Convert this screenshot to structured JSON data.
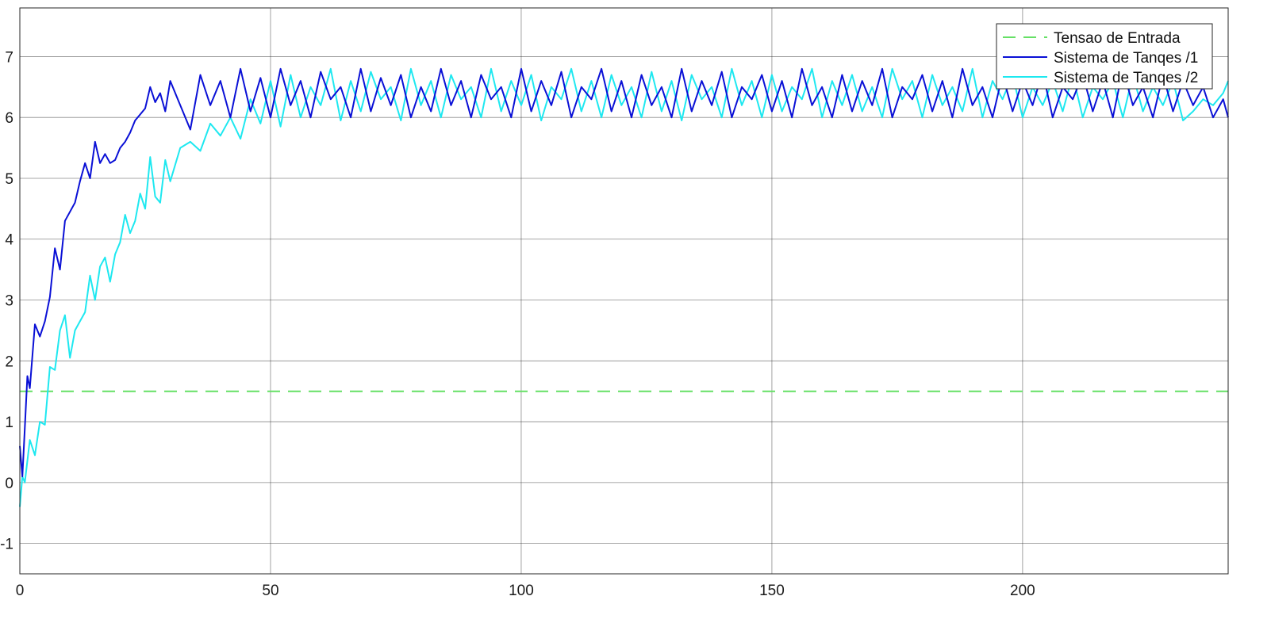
{
  "chart_data": {
    "type": "line",
    "title": "",
    "xlabel": "",
    "ylabel": "",
    "xlim": [
      0,
      241
    ],
    "ylim": [
      -1.5,
      7.8
    ],
    "xticks": [
      0,
      50,
      100,
      150,
      200
    ],
    "yticks": [
      -1,
      0,
      1,
      2,
      3,
      4,
      5,
      6,
      7
    ],
    "xtick_labels": [
      "0",
      "50",
      "100",
      "150",
      "200"
    ],
    "ytick_labels": [
      "-1",
      "0",
      "1",
      "2",
      "3",
      "4",
      "5",
      "6",
      "7"
    ],
    "grid": true,
    "legend_position": "top-right",
    "series": [
      {
        "name": "Tensao de Entrada",
        "color": "#66e066",
        "style": "dashed",
        "x": [
          0,
          241
        ],
        "y": [
          1.5,
          1.5
        ]
      },
      {
        "name": "Sistema de Tanqes /1",
        "color": "#0a10d6",
        "style": "solid",
        "x": [
          0,
          0.5,
          1,
          1.5,
          2,
          3,
          4,
          5,
          6,
          7,
          8,
          9,
          10,
          11,
          12,
          13,
          14,
          15,
          16,
          17,
          18,
          19,
          20,
          21,
          22,
          23,
          24,
          25,
          26,
          27,
          28,
          29,
          30,
          32,
          34,
          36,
          38,
          40,
          42,
          44,
          46,
          48,
          50,
          52,
          54,
          56,
          58,
          60,
          62,
          64,
          66,
          68,
          70,
          72,
          74,
          76,
          78,
          80,
          82,
          84,
          86,
          88,
          90,
          92,
          94,
          96,
          98,
          100,
          102,
          104,
          106,
          108,
          110,
          112,
          114,
          116,
          118,
          120,
          122,
          124,
          126,
          128,
          130,
          132,
          134,
          136,
          138,
          140,
          142,
          144,
          146,
          148,
          150,
          152,
          154,
          156,
          158,
          160,
          162,
          164,
          166,
          168,
          170,
          172,
          174,
          176,
          178,
          180,
          182,
          184,
          186,
          188,
          190,
          192,
          194,
          196,
          198,
          200,
          202,
          204,
          206,
          208,
          210,
          212,
          214,
          216,
          218,
          220,
          222,
          224,
          226,
          228,
          230,
          232,
          234,
          236,
          238,
          240,
          241
        ],
        "y": [
          0.6,
          0.1,
          0.9,
          1.75,
          1.55,
          2.6,
          2.4,
          2.65,
          3.05,
          3.85,
          3.5,
          4.3,
          4.45,
          4.6,
          4.95,
          5.25,
          5.0,
          5.6,
          5.25,
          5.4,
          5.25,
          5.3,
          5.5,
          5.6,
          5.75,
          5.95,
          6.05,
          6.15,
          6.5,
          6.25,
          6.4,
          6.1,
          6.6,
          6.2,
          5.8,
          6.7,
          6.2,
          6.6,
          6.0,
          6.8,
          6.1,
          6.65,
          6.0,
          6.8,
          6.2,
          6.6,
          6.0,
          6.75,
          6.3,
          6.5,
          6.0,
          6.8,
          6.1,
          6.65,
          6.2,
          6.7,
          6.0,
          6.5,
          6.1,
          6.8,
          6.2,
          6.6,
          6.0,
          6.7,
          6.3,
          6.5,
          6.0,
          6.8,
          6.1,
          6.6,
          6.2,
          6.75,
          6.0,
          6.5,
          6.3,
          6.8,
          6.1,
          6.6,
          6.0,
          6.7,
          6.2,
          6.5,
          6.0,
          6.8,
          6.1,
          6.6,
          6.2,
          6.75,
          6.0,
          6.5,
          6.3,
          6.7,
          6.1,
          6.6,
          6.0,
          6.8,
          6.2,
          6.5,
          6.0,
          6.7,
          6.1,
          6.6,
          6.2,
          6.8,
          6.0,
          6.5,
          6.3,
          6.7,
          6.1,
          6.6,
          6.0,
          6.8,
          6.2,
          6.5,
          6.0,
          6.7,
          6.1,
          6.6,
          6.2,
          6.75,
          6.0,
          6.5,
          6.3,
          6.7,
          6.1,
          6.6,
          6.0,
          6.8,
          6.2,
          6.5,
          6.0,
          6.7,
          6.1,
          6.6,
          6.2,
          6.5,
          6.0,
          6.3,
          6.0
        ]
      },
      {
        "name": "Sistema de Tanqes /2",
        "color": "#1ee8f0",
        "style": "solid",
        "x": [
          0,
          0.5,
          1,
          2,
          3,
          4,
          5,
          6,
          7,
          8,
          9,
          10,
          11,
          12,
          13,
          14,
          15,
          16,
          17,
          18,
          19,
          20,
          21,
          22,
          23,
          24,
          25,
          26,
          27,
          28,
          29,
          30,
          32,
          34,
          36,
          38,
          40,
          42,
          44,
          46,
          48,
          50,
          52,
          54,
          56,
          58,
          60,
          62,
          64,
          66,
          68,
          70,
          72,
          74,
          76,
          78,
          80,
          82,
          84,
          86,
          88,
          90,
          92,
          94,
          96,
          98,
          100,
          102,
          104,
          106,
          108,
          110,
          112,
          114,
          116,
          118,
          120,
          122,
          124,
          126,
          128,
          130,
          132,
          134,
          136,
          138,
          140,
          142,
          144,
          146,
          148,
          150,
          152,
          154,
          156,
          158,
          160,
          162,
          164,
          166,
          168,
          170,
          172,
          174,
          176,
          178,
          180,
          182,
          184,
          186,
          188,
          190,
          192,
          194,
          196,
          198,
          200,
          202,
          204,
          206,
          208,
          210,
          212,
          214,
          216,
          218,
          220,
          222,
          224,
          226,
          228,
          230,
          232,
          234,
          236,
          238,
          240,
          241
        ],
        "y": [
          -0.4,
          0.1,
          0.0,
          0.7,
          0.45,
          1.0,
          0.95,
          1.9,
          1.85,
          2.5,
          2.75,
          2.05,
          2.5,
          2.65,
          2.8,
          3.4,
          3.0,
          3.55,
          3.7,
          3.3,
          3.75,
          3.95,
          4.4,
          4.1,
          4.3,
          4.75,
          4.5,
          5.35,
          4.7,
          4.6,
          5.3,
          4.95,
          5.5,
          5.6,
          5.45,
          5.9,
          5.7,
          6.0,
          5.65,
          6.3,
          5.9,
          6.6,
          5.85,
          6.7,
          6.0,
          6.5,
          6.2,
          6.8,
          5.95,
          6.6,
          6.1,
          6.75,
          6.3,
          6.5,
          5.95,
          6.8,
          6.2,
          6.6,
          6.0,
          6.7,
          6.3,
          6.5,
          6.0,
          6.8,
          6.1,
          6.6,
          6.2,
          6.7,
          5.95,
          6.5,
          6.3,
          6.8,
          6.1,
          6.6,
          6.0,
          6.7,
          6.2,
          6.5,
          6.0,
          6.75,
          6.1,
          6.6,
          5.95,
          6.7,
          6.3,
          6.5,
          6.0,
          6.8,
          6.2,
          6.6,
          6.0,
          6.7,
          6.1,
          6.5,
          6.3,
          6.8,
          6.0,
          6.6,
          6.2,
          6.7,
          6.1,
          6.5,
          6.0,
          6.8,
          6.3,
          6.6,
          6.0,
          6.7,
          6.2,
          6.5,
          6.1,
          6.8,
          6.0,
          6.6,
          6.3,
          6.7,
          6.0,
          6.5,
          6.2,
          6.6,
          6.1,
          6.7,
          6.0,
          6.5,
          6.3,
          6.6,
          6.0,
          6.7,
          6.1,
          6.5,
          6.2,
          6.6,
          5.95,
          6.1,
          6.3,
          6.2,
          6.4,
          6.6
        ]
      }
    ]
  }
}
